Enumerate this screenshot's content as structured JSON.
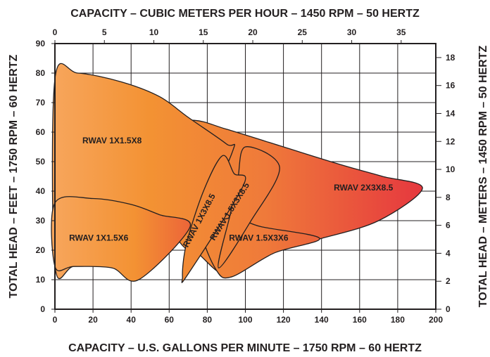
{
  "chart_data": {
    "type": "area",
    "title": "",
    "top_axis_label": "CAPACITY – CUBIC METERS PER HOUR – 1450 RPM – 50 HERTZ",
    "bottom_axis_label": "CAPACITY – U.S. GALLONS PER MINUTE – 1750 RPM – 60 HERTZ",
    "left_axis_label": "TOTAL HEAD – FEET – 1750 RPM – 60 HERTZ",
    "right_axis_label": "TOTAL HEAD – METERS – 1450 RPM – 50 HERTZ",
    "x_bottom": {
      "unit": "gpm",
      "range": [
        0,
        200
      ],
      "ticks": [
        "0",
        "20",
        "40",
        "60",
        "80",
        "100",
        "120",
        "140",
        "160",
        "180",
        "200"
      ]
    },
    "x_top": {
      "unit": "m3/h",
      "range": [
        0,
        38.5
      ],
      "ticks": [
        "0",
        "5",
        "10",
        "15",
        "20",
        "25",
        "30",
        "35"
      ]
    },
    "y_left": {
      "unit": "ft",
      "range": [
        0,
        90
      ],
      "ticks": [
        "0",
        "10",
        "20",
        "30",
        "40",
        "50",
        "60",
        "70",
        "80",
        "90"
      ]
    },
    "y_right": {
      "unit": "m",
      "range": [
        0,
        19
      ],
      "ticks": [
        "0",
        "2",
        "4",
        "6",
        "8",
        "10",
        "12",
        "14",
        "16",
        "18"
      ]
    },
    "grid": true,
    "colors": {
      "low_flow": "#f7a55b",
      "mid": "#f0823a",
      "high_flow": "#e5323f",
      "outline": "#231f20"
    },
    "series": [
      {
        "name": "RWAV 1X1.5X8",
        "label_at": [
          30,
          57
        ],
        "outline": [
          [
            0,
            15
          ],
          [
            0,
            78
          ],
          [
            12,
            80
          ],
          [
            35,
            77
          ],
          [
            55,
            72
          ],
          [
            70,
            65
          ],
          [
            90,
            56
          ],
          [
            93,
            53
          ],
          [
            71,
            22
          ],
          [
            68,
            21
          ],
          [
            62,
            25
          ],
          [
            57,
            23
          ],
          [
            44,
            16
          ],
          [
            30,
            15
          ],
          [
            10,
            14.5
          ]
        ]
      },
      {
        "name": "RWAV 1X1.5X6",
        "label_at": [
          23,
          24
        ],
        "outline": [
          [
            0,
            14.5
          ],
          [
            0,
            36
          ],
          [
            20,
            37.5
          ],
          [
            40,
            35.5
          ],
          [
            55,
            32
          ],
          [
            71,
            28
          ],
          [
            44,
            10
          ],
          [
            30,
            14
          ],
          [
            10,
            14.5
          ]
        ]
      },
      {
        "name": "RWAV 2X3X8.5",
        "label_at": [
          162,
          41
        ],
        "outline": [
          [
            54,
            62
          ],
          [
            73,
            64
          ],
          [
            90,
            61
          ],
          [
            120,
            55
          ],
          [
            150,
            49
          ],
          [
            172,
            45
          ],
          [
            193,
            41
          ],
          [
            170,
            30
          ],
          [
            140,
            24
          ],
          [
            120,
            21
          ],
          [
            100,
            17
          ],
          [
            93,
            11
          ],
          [
            85,
            13
          ],
          [
            75,
            19
          ],
          [
            68,
            22
          ]
        ]
      },
      {
        "name": "RWAV 1X3X8.5",
        "label_at": [
          76,
          30
        ],
        "outline": [
          [
            69,
            22
          ],
          [
            78,
            40
          ],
          [
            88,
            52
          ],
          [
            94,
            46
          ],
          [
            99,
            42
          ],
          [
            70,
            12
          ],
          [
            67,
            11
          ]
        ]
      },
      {
        "name": "RWAV 1.5X3X8.5",
        "label_at": [
          92,
          33
        ],
        "outline": [
          [
            92,
            32
          ],
          [
            96,
            44
          ],
          [
            100,
            55
          ],
          [
            118,
            48
          ],
          [
            103,
            30
          ],
          [
            86,
            14
          ]
        ]
      },
      {
        "name": "RWAV 1.5X3X6",
        "label_at": [
          107,
          24
        ],
        "outline": [
          [
            78,
            26
          ],
          [
            93,
            31
          ],
          [
            108,
            28
          ],
          [
            139,
            24
          ],
          [
            115,
            19
          ],
          [
            93,
            11
          ],
          [
            85,
            13
          ]
        ]
      }
    ]
  }
}
